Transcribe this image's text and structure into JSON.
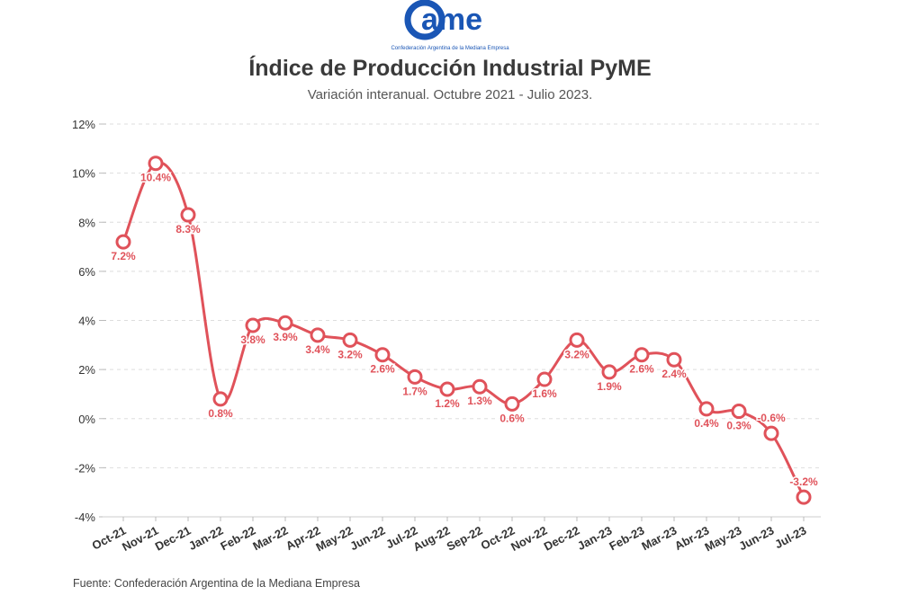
{
  "logo": {
    "wordmark": "ame",
    "initial": "C",
    "tagline": "Confederación Argentina de la Mediana Empresa",
    "color": "#1a56b5"
  },
  "source": "Fuente: Confederación Argentina de la Mediana Empresa",
  "chart_data": {
    "type": "line",
    "title": "Índice de Producción Industrial PyME",
    "subtitle": "Variación interanual. Octubre 2021 - Julio 2023.",
    "xlabel": "",
    "ylabel": "",
    "categories": [
      "Oct-21",
      "Nov-21",
      "Dec-21",
      "Jan-22",
      "Feb-22",
      "Mar-22",
      "Apr-22",
      "May-22",
      "Jun-22",
      "Jul-22",
      "Aug-22",
      "Sep-22",
      "Oct-22",
      "Nov-22",
      "Dec-22",
      "Jan-23",
      "Feb-23",
      "Mar-23",
      "Abr-23",
      "May-23",
      "Jun-23",
      "Jul-23"
    ],
    "series": [
      {
        "name": "Variación interanual",
        "values": [
          7.2,
          10.4,
          8.3,
          0.8,
          3.8,
          3.9,
          3.4,
          3.2,
          2.6,
          1.7,
          1.2,
          1.3,
          0.6,
          1.6,
          3.2,
          1.9,
          2.6,
          2.4,
          0.4,
          0.3,
          -0.6,
          -3.2
        ],
        "labels": [
          "7.2%",
          "10.4%",
          "8.3%",
          "0.8%",
          "3.8%",
          "3.9%",
          "3.4%",
          "3.2%",
          "2.6%",
          "1.7%",
          "1.2%",
          "1.3%",
          "0.6%",
          "1.6%",
          "3.2%",
          "1.9%",
          "2.6%",
          "2.4%",
          "0.4%",
          "0.3%",
          "-0.6%",
          "-3.2%"
        ],
        "color": "#e0525a"
      }
    ],
    "ylim": [
      -4,
      12
    ],
    "yticks": [
      -4,
      -2,
      0,
      2,
      4,
      6,
      8,
      10,
      12
    ],
    "ytick_labels": [
      "-4%",
      "-2%",
      "0%",
      "2%",
      "4%",
      "6%",
      "8%",
      "10%",
      "12%"
    ],
    "grid": true
  }
}
